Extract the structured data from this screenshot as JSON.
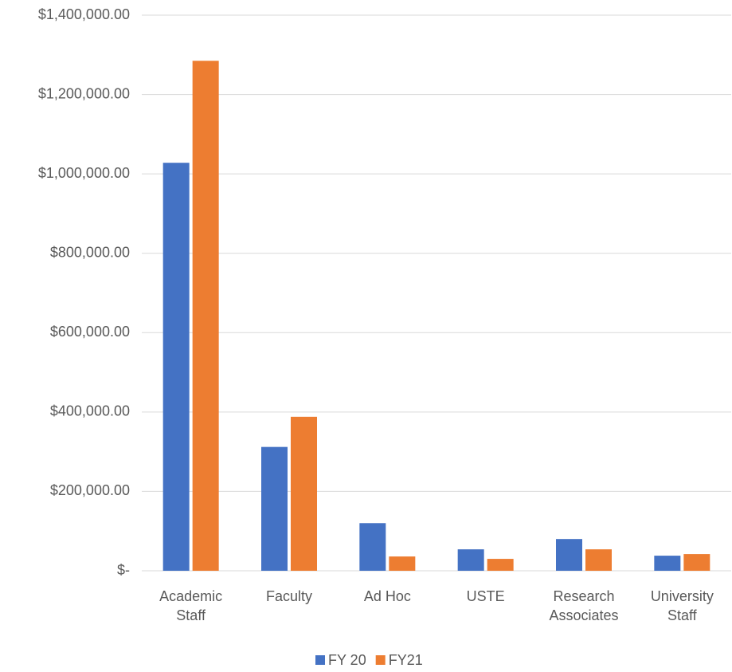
{
  "chart_data": {
    "type": "bar",
    "categories": [
      "Academic Staff",
      "Faculty",
      "Ad Hoc",
      "USTE",
      "Research Associates",
      "University Staff"
    ],
    "series": [
      {
        "name": "FY 20",
        "color": "#4472c4",
        "values": [
          1028000,
          312000,
          120000,
          54000,
          80000,
          38000
        ]
      },
      {
        "name": "FY21",
        "color": "#ed7d31",
        "values": [
          1285000,
          388000,
          36000,
          30000,
          54000,
          42000
        ]
      }
    ],
    "ylim": [
      0,
      1400000
    ],
    "yticks": [
      {
        "value": 0,
        "label": "$-"
      },
      {
        "value": 200000,
        "label": "$200,000.00"
      },
      {
        "value": 400000,
        "label": "$400,000.00"
      },
      {
        "value": 600000,
        "label": "$600,000.00"
      },
      {
        "value": 800000,
        "label": "$800,000.00"
      },
      {
        "value": 1000000,
        "label": "$1,000,000.00"
      },
      {
        "value": 1200000,
        "label": "$1,200,000.00"
      },
      {
        "value": 1400000,
        "label": "$1,400,000.00"
      }
    ],
    "grid": true,
    "legend": "bottom"
  }
}
